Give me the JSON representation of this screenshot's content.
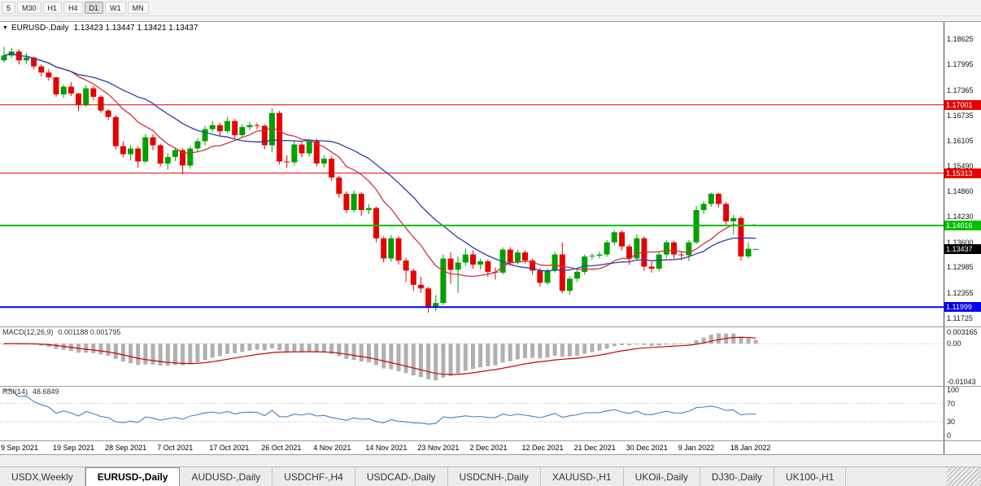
{
  "toolbar": {
    "timeframes": [
      {
        "label": "5",
        "active": false
      },
      {
        "label": "M30",
        "active": false
      },
      {
        "label": "H1",
        "active": false
      },
      {
        "label": "H4",
        "active": false
      },
      {
        "label": "D1",
        "active": true
      },
      {
        "label": "W1",
        "active": false
      },
      {
        "label": "MN",
        "active": false
      }
    ]
  },
  "chart": {
    "symbol": "EURUSD-,Daily",
    "ohlc": "1.13423 1.13447 1.13421 1.13437",
    "colors": {
      "bull": "#00A000",
      "bear": "#E60000"
    },
    "price_axis_labels": [
      "1.18625",
      "1.17995",
      "1.17365",
      "1.16735",
      "1.16105",
      "1.15490",
      "1.14860",
      "1.14230",
      "1.13600",
      "1.12985",
      "1.12355",
      "1.11725"
    ],
    "hlines": [
      {
        "price": 1.17001,
        "label": "1.17001",
        "color": "#e60000",
        "width": 1
      },
      {
        "price": 1.15313,
        "label": "1.15313",
        "color": "#e60000",
        "width": 1
      },
      {
        "price": 1.14016,
        "label": "1.14016",
        "color": "#00c000",
        "width": 2
      },
      {
        "price": 1.11999,
        "label": "1.11999",
        "color": "#0000ee",
        "width": 2
      }
    ],
    "current_price": {
      "value": 1.13437,
      "label": "1.13437",
      "color": "#000000"
    },
    "moving_averages": [
      {
        "period": 10,
        "color": "#cc3344"
      },
      {
        "period": 20,
        "color": "#2e3f9f"
      }
    ],
    "time_labels": [
      {
        "i": 0,
        "label": "9 Sep 2021"
      },
      {
        "i": 7,
        "label": "19 Sep 2021"
      },
      {
        "i": 14,
        "label": "28 Sep 2021"
      },
      {
        "i": 21,
        "label": "7 Oct 2021"
      },
      {
        "i": 28,
        "label": "17 Oct 2021"
      },
      {
        "i": 35,
        "label": "26 Oct 2021"
      },
      {
        "i": 42,
        "label": "4 Nov 2021"
      },
      {
        "i": 49,
        "label": "14 Nov 2021"
      },
      {
        "i": 56,
        "label": "23 Nov 2021"
      },
      {
        "i": 63,
        "label": "2 Dec 2021"
      },
      {
        "i": 70,
        "label": "12 Dec 2021"
      },
      {
        "i": 77,
        "label": "21 Dec 2021"
      },
      {
        "i": 84,
        "label": "30 Dec 2021"
      },
      {
        "i": 91,
        "label": "9 Jan 2022"
      },
      {
        "i": 98,
        "label": "18 Jan 2022"
      }
    ],
    "candles": [
      [
        1.181,
        1.1843,
        1.1805,
        1.1822
      ],
      [
        1.1822,
        1.1841,
        1.1815,
        1.1832
      ],
      [
        1.1832,
        1.1838,
        1.18,
        1.181
      ],
      [
        1.181,
        1.1827,
        1.1802,
        1.1817
      ],
      [
        1.1817,
        1.182,
        1.1788,
        1.1795
      ],
      [
        1.1795,
        1.18,
        1.177,
        1.178
      ],
      [
        1.178,
        1.1788,
        1.176,
        1.1768
      ],
      [
        1.1768,
        1.177,
        1.172,
        1.1726
      ],
      [
        1.1726,
        1.175,
        1.1717,
        1.1745
      ],
      [
        1.1745,
        1.1756,
        1.1722,
        1.1728
      ],
      [
        1.1728,
        1.173,
        1.1684,
        1.17
      ],
      [
        1.17,
        1.1749,
        1.1695,
        1.1741
      ],
      [
        1.1741,
        1.1747,
        1.1712,
        1.172
      ],
      [
        1.172,
        1.1724,
        1.168,
        1.1686
      ],
      [
        1.1686,
        1.169,
        1.1662,
        1.167
      ],
      [
        1.167,
        1.1674,
        1.159,
        1.1598
      ],
      [
        1.1598,
        1.161,
        1.157,
        1.1578
      ],
      [
        1.1578,
        1.16,
        1.1563,
        1.1592
      ],
      [
        1.1592,
        1.1598,
        1.1545,
        1.156
      ],
      [
        1.156,
        1.1628,
        1.1555,
        1.162
      ],
      [
        1.162,
        1.1627,
        1.1588,
        1.16
      ],
      [
        1.16,
        1.1604,
        1.1548,
        1.1555
      ],
      [
        1.1555,
        1.158,
        1.154,
        1.1571
      ],
      [
        1.1571,
        1.1595,
        1.1561,
        1.1588
      ],
      [
        1.1588,
        1.1593,
        1.1528,
        1.155
      ],
      [
        1.155,
        1.1598,
        1.1542,
        1.1592
      ],
      [
        1.1592,
        1.1618,
        1.1585,
        1.161
      ],
      [
        1.161,
        1.1648,
        1.16,
        1.164
      ],
      [
        1.164,
        1.166,
        1.1632,
        1.165
      ],
      [
        1.165,
        1.1656,
        1.1622,
        1.1635
      ],
      [
        1.1635,
        1.167,
        1.163,
        1.166
      ],
      [
        1.166,
        1.1665,
        1.1617,
        1.1625
      ],
      [
        1.1625,
        1.1652,
        1.1618,
        1.1645
      ],
      [
        1.1645,
        1.1658,
        1.1638,
        1.165
      ],
      [
        1.165,
        1.1656,
        1.164,
        1.1648
      ],
      [
        1.1648,
        1.1652,
        1.159,
        1.16
      ],
      [
        1.16,
        1.1692,
        1.1582,
        1.168
      ],
      [
        1.168,
        1.1685,
        1.1552,
        1.156
      ],
      [
        1.156,
        1.1575,
        1.1545,
        1.1558
      ],
      [
        1.1558,
        1.161,
        1.155,
        1.1602
      ],
      [
        1.1602,
        1.1608,
        1.157,
        1.158
      ],
      [
        1.158,
        1.1616,
        1.1572,
        1.161
      ],
      [
        1.161,
        1.1616,
        1.1548,
        1.1555
      ],
      [
        1.1555,
        1.1575,
        1.1545,
        1.1567
      ],
      [
        1.1567,
        1.1572,
        1.1513,
        1.152
      ],
      [
        1.152,
        1.1525,
        1.147,
        1.148
      ],
      [
        1.148,
        1.1486,
        1.1432,
        1.144
      ],
      [
        1.144,
        1.1488,
        1.1434,
        1.148
      ],
      [
        1.148,
        1.1484,
        1.1425,
        1.144
      ],
      [
        1.144,
        1.1455,
        1.143,
        1.1445
      ],
      [
        1.1445,
        1.1448,
        1.136,
        1.137
      ],
      [
        1.137,
        1.1375,
        1.131,
        1.132
      ],
      [
        1.132,
        1.1378,
        1.1312,
        1.137
      ],
      [
        1.137,
        1.1375,
        1.1305,
        1.1315
      ],
      [
        1.1315,
        1.1322,
        1.1262,
        1.129
      ],
      [
        1.129,
        1.1295,
        1.124,
        1.1255
      ],
      [
        1.1255,
        1.1275,
        1.1235,
        1.1246
      ],
      [
        1.1246,
        1.125,
        1.1186,
        1.12
      ],
      [
        1.12,
        1.123,
        1.119,
        1.121
      ],
      [
        1.121,
        1.133,
        1.1205,
        1.132
      ],
      [
        1.132,
        1.1335,
        1.1258,
        1.1292
      ],
      [
        1.1292,
        1.1325,
        1.1235,
        1.131
      ],
      [
        1.131,
        1.1345,
        1.1302,
        1.133
      ],
      [
        1.133,
        1.134,
        1.1295,
        1.1305
      ],
      [
        1.1305,
        1.132,
        1.1293,
        1.1313
      ],
      [
        1.1313,
        1.1318,
        1.1275,
        1.1287
      ],
      [
        1.1287,
        1.1298,
        1.1268,
        1.1285
      ],
      [
        1.1285,
        1.1348,
        1.128,
        1.1342
      ],
      [
        1.1342,
        1.1348,
        1.1302,
        1.131
      ],
      [
        1.131,
        1.1342,
        1.1305,
        1.1335
      ],
      [
        1.1335,
        1.134,
        1.1308,
        1.1315
      ],
      [
        1.1315,
        1.132,
        1.128,
        1.129
      ],
      [
        1.129,
        1.1296,
        1.125,
        1.126
      ],
      [
        1.126,
        1.1296,
        1.1255,
        1.129
      ],
      [
        1.129,
        1.1336,
        1.1285,
        1.133
      ],
      [
        1.133,
        1.136,
        1.1235,
        1.124
      ],
      [
        1.124,
        1.1276,
        1.123,
        1.127
      ],
      [
        1.127,
        1.1292,
        1.1262,
        1.1287
      ],
      [
        1.1287,
        1.133,
        1.128,
        1.1325
      ],
      [
        1.1325,
        1.1333,
        1.1318,
        1.1327
      ],
      [
        1.1327,
        1.1337,
        1.132,
        1.133
      ],
      [
        1.133,
        1.1366,
        1.1324,
        1.136
      ],
      [
        1.136,
        1.139,
        1.1352,
        1.1385
      ],
      [
        1.1385,
        1.139,
        1.134,
        1.135
      ],
      [
        1.135,
        1.1355,
        1.1304,
        1.132
      ],
      [
        1.132,
        1.138,
        1.1315,
        1.137
      ],
      [
        1.137,
        1.1375,
        1.129,
        1.13
      ],
      [
        1.13,
        1.1312,
        1.1285,
        1.1295
      ],
      [
        1.1295,
        1.1336,
        1.1288,
        1.133
      ],
      [
        1.133,
        1.1365,
        1.1322,
        1.136
      ],
      [
        1.136,
        1.1364,
        1.132,
        1.133
      ],
      [
        1.133,
        1.1338,
        1.1316,
        1.1328
      ],
      [
        1.1328,
        1.1366,
        1.1314,
        1.136
      ],
      [
        1.136,
        1.145,
        1.1355,
        1.144
      ],
      [
        1.144,
        1.1462,
        1.143,
        1.1455
      ],
      [
        1.1455,
        1.1483,
        1.1448,
        1.148
      ],
      [
        1.148,
        1.1482,
        1.1446,
        1.1455
      ],
      [
        1.1455,
        1.146,
        1.1404,
        1.1412
      ],
      [
        1.1412,
        1.1428,
        1.138,
        1.142
      ],
      [
        1.142,
        1.1424,
        1.1315,
        1.1325
      ],
      [
        1.1325,
        1.136,
        1.132,
        1.1344
      ],
      [
        1.13423,
        1.13447,
        1.13421,
        1.13437
      ]
    ]
  },
  "macd": {
    "title": "MACD(12,26,9)",
    "values": "0.001188 0.001795",
    "axis_labels": [
      "0.003165",
      "0.00",
      "-0.01043"
    ],
    "histogram_color": "#b0b0b0",
    "signal_color": "#cc0000"
  },
  "rsi": {
    "title": "RSI(14)",
    "value": "48.6849",
    "axis_labels": [
      "100",
      "70",
      "30",
      "0"
    ],
    "levels": [
      70,
      30
    ],
    "line_color": "#4a7ebb"
  },
  "tabs": [
    {
      "label": "USDX,Weekly",
      "active": false
    },
    {
      "label": "EURUSD-,Daily",
      "active": true
    },
    {
      "label": "AUDUSD-,Daily",
      "active": false
    },
    {
      "label": "USDCHF-,H4",
      "active": false
    },
    {
      "label": "USDCAD-,Daily",
      "active": false
    },
    {
      "label": "USDCNH-,Daily",
      "active": false
    },
    {
      "label": "XAUUSD-,H1",
      "active": false
    },
    {
      "label": "UKOil-,Daily",
      "active": false
    },
    {
      "label": "DJ30-,Daily",
      "active": false
    },
    {
      "label": "UK100-,H1",
      "active": false
    }
  ]
}
